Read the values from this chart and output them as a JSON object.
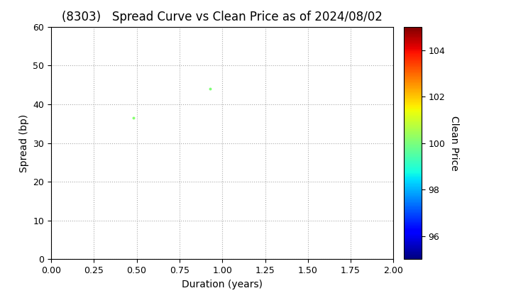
{
  "title": "(8303)   Spread Curve vs Clean Price as of 2024/08/02",
  "xlabel": "Duration (years)",
  "ylabel": "Spread (bp)",
  "colorbar_label": "Clean Price",
  "xlim": [
    0.0,
    2.0
  ],
  "ylim": [
    0,
    60
  ],
  "xticks": [
    0.0,
    0.25,
    0.5,
    0.75,
    1.0,
    1.25,
    1.5,
    1.75,
    2.0
  ],
  "yticks": [
    0,
    10,
    20,
    30,
    40,
    50,
    60
  ],
  "colorbar_min": 95,
  "colorbar_max": 105,
  "colorbar_ticks": [
    96,
    98,
    100,
    102,
    104
  ],
  "points": [
    {
      "duration": 0.48,
      "spread": 36.5,
      "price": 100.15
    },
    {
      "duration": 0.93,
      "spread": 44.0,
      "price": 100.05
    }
  ],
  "background_color": "#ffffff",
  "grid_color": "#aaaaaa",
  "title_fontsize": 12,
  "axis_fontsize": 10,
  "tick_fontsize": 9,
  "point_size": 8
}
